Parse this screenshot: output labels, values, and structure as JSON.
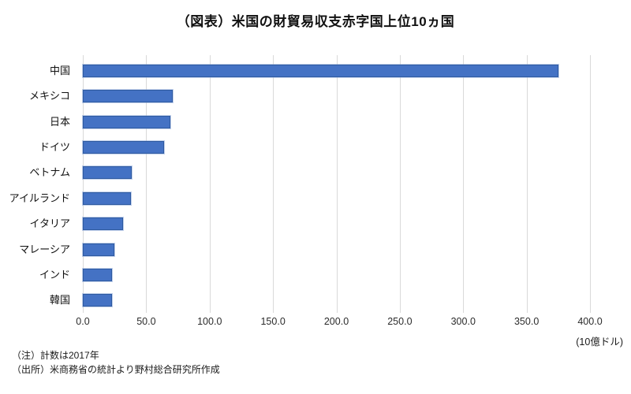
{
  "title": "（図表）米国の財貿易収支赤字国上位10ヵ国",
  "chart_data": {
    "type": "bar",
    "orientation": "horizontal",
    "title": "（図表）米国の財貿易収支赤字国上位10ヵ国",
    "categories": [
      "中国",
      "メキシコ",
      "日本",
      "ドイツ",
      "ベトナム",
      "アイルランド",
      "イタリア",
      "マレーシア",
      "インド",
      "韓国"
    ],
    "values": [
      375.2,
      71.1,
      68.8,
      64.3,
      38.3,
      38.1,
      31.6,
      24.6,
      22.9,
      22.9
    ],
    "xlabel": "",
    "ylabel": "",
    "xlim": [
      0,
      400
    ],
    "xticks": [
      0,
      50,
      100,
      150,
      200,
      250,
      300,
      350,
      400
    ],
    "xtick_labels": [
      "0.0",
      "50.0",
      "100.0",
      "150.0",
      "200.0",
      "250.0",
      "300.0",
      "350.0",
      "400.0"
    ],
    "unit_label": "(10億ドル)",
    "grid": true,
    "legend": "none",
    "bar_color": "#4472C4",
    "bar_border_color": "#2E5AA0",
    "gridline_color": "#D9D9D9"
  },
  "notes": {
    "note1": "（注）計数は2017年",
    "note2": "（出所）米商務省の統計より野村総合研究所作成"
  }
}
